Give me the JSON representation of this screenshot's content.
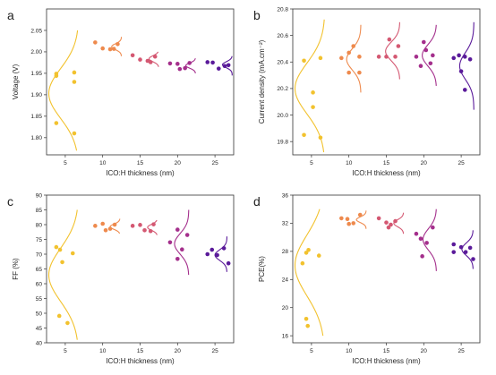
{
  "chart_data": [
    {
      "type": "scatter",
      "letter": "a",
      "xlabel": "ICO:H thickness (nm)",
      "ylabel": "Voltage (V)",
      "categories": [
        5,
        10,
        15,
        20,
        25
      ],
      "xlim": [
        2.5,
        27.5
      ],
      "ylim": [
        1.76,
        2.1
      ],
      "yticks": [
        1.8,
        1.85,
        1.9,
        1.95,
        2.0,
        2.05
      ],
      "ytick_format": 2,
      "series": [
        {
          "category": 5,
          "color": "#f2c22e",
          "points": [
            [
              3.8,
              1.949
            ],
            [
              3.8,
              1.944
            ],
            [
              3.8,
              1.834
            ],
            [
              6.2,
              1.952
            ],
            [
              6.2,
              1.93
            ],
            [
              6.2,
              1.81
            ]
          ]
        },
        {
          "category": 10,
          "color": "#ee8a4d",
          "points": [
            [
              9.0,
              2.022
            ],
            [
              10.0,
              2.008
            ],
            [
              11.0,
              2.006
            ],
            [
              12.0,
              2.018
            ],
            [
              11.5,
              2.007
            ]
          ]
        },
        {
          "category": 15,
          "color": "#d45872",
          "points": [
            [
              14.0,
              1.992
            ],
            [
              15.0,
              1.982
            ],
            [
              16.0,
              1.979
            ],
            [
              17.0,
              1.989
            ],
            [
              16.4,
              1.976
            ]
          ]
        },
        {
          "category": 20,
          "color": "#a42f8c",
          "points": [
            [
              19.0,
              1.973
            ],
            [
              20.0,
              1.972
            ],
            [
              21.0,
              1.962
            ],
            [
              21.6,
              1.974
            ],
            [
              20.3,
              1.96
            ]
          ]
        },
        {
          "category": 25,
          "color": "#5a1a9a",
          "points": [
            [
              24.0,
              1.976
            ],
            [
              24.7,
              1.975
            ],
            [
              25.5,
              1.961
            ],
            [
              26.3,
              1.967
            ],
            [
              26.8,
              1.969
            ]
          ]
        }
      ],
      "distributions": [
        {
          "category": 5,
          "color": "#f2c22e",
          "mean": 1.903,
          "sd": 0.058,
          "amplitude": 4.0,
          "baseline": 6.8,
          "range": [
            1.77,
            2.05
          ]
        },
        {
          "category": 10,
          "color": "#ee8a4d",
          "mean": 2.012,
          "sd": 0.007,
          "amplitude": 1.3,
          "baseline": 12.5,
          "range": [
            1.99,
            2.035
          ]
        },
        {
          "category": 15,
          "color": "#d45872",
          "mean": 1.984,
          "sd": 0.007,
          "amplitude": 1.3,
          "baseline": 17.5,
          "range": [
            1.965,
            2.0
          ]
        },
        {
          "category": 20,
          "color": "#a42f8c",
          "mean": 1.968,
          "sd": 0.006,
          "amplitude": 1.3,
          "baseline": 22.4,
          "range": [
            1.95,
            1.985
          ]
        },
        {
          "category": 25,
          "color": "#5a1a9a",
          "mean": 1.97,
          "sd": 0.007,
          "amplitude": 1.3,
          "baseline": 27.3,
          "range": [
            1.945,
            1.99
          ]
        }
      ]
    },
    {
      "type": "scatter",
      "letter": "b",
      "xlabel": "ICO:H thickness (nm)",
      "ylabel": "Current density (mA.cm⁻²)",
      "categories": [
        5,
        10,
        15,
        20,
        25
      ],
      "xlim": [
        2.5,
        27.5
      ],
      "ylim": [
        19.7,
        20.8
      ],
      "yticks": [
        19.8,
        20.0,
        20.2,
        20.4,
        20.6,
        20.8
      ],
      "ytick_format": 1,
      "series": [
        {
          "category": 5,
          "color": "#f2c22e",
          "points": [
            [
              4.0,
              20.41
            ],
            [
              4.0,
              19.85
            ],
            [
              5.2,
              20.17
            ],
            [
              5.2,
              20.06
            ],
            [
              6.2,
              20.43
            ],
            [
              6.2,
              19.83
            ]
          ]
        },
        {
          "category": 10,
          "color": "#ee8a4d",
          "points": [
            [
              9.0,
              20.43
            ],
            [
              10.0,
              20.47
            ],
            [
              10.6,
              20.52
            ],
            [
              11.4,
              20.44
            ],
            [
              10.0,
              20.32
            ],
            [
              11.4,
              20.32
            ]
          ]
        },
        {
          "category": 15,
          "color": "#d45872",
          "points": [
            [
              14.0,
              20.44
            ],
            [
              15.0,
              20.44
            ],
            [
              15.4,
              20.57
            ],
            [
              16.2,
              20.44
            ],
            [
              16.6,
              20.52
            ]
          ]
        },
        {
          "category": 20,
          "color": "#a42f8c",
          "points": [
            [
              19.0,
              20.44
            ],
            [
              20.0,
              20.55
            ],
            [
              20.3,
              20.49
            ],
            [
              21.2,
              20.45
            ],
            [
              19.6,
              20.37
            ],
            [
              20.9,
              20.39
            ]
          ]
        },
        {
          "category": 25,
          "color": "#5a1a9a",
          "points": [
            [
              24.0,
              20.43
            ],
            [
              24.7,
              20.45
            ],
            [
              25.5,
              20.44
            ],
            [
              26.2,
              20.42
            ],
            [
              25.0,
              20.33
            ],
            [
              25.5,
              20.19
            ]
          ]
        }
      ],
      "distributions": [
        {
          "category": 5,
          "color": "#f2c22e",
          "mean": 20.2,
          "sd": 0.19,
          "amplitude": 4.0,
          "baseline": 6.8,
          "range": [
            19.72,
            20.72
          ]
        },
        {
          "category": 10,
          "color": "#ee8a4d",
          "mean": 20.42,
          "sd": 0.08,
          "amplitude": 1.9,
          "baseline": 11.6,
          "range": [
            20.17,
            20.68
          ]
        },
        {
          "category": 15,
          "color": "#d45872",
          "mean": 20.48,
          "sd": 0.07,
          "amplitude": 1.9,
          "baseline": 16.8,
          "range": [
            20.27,
            20.7
          ]
        },
        {
          "category": 20,
          "color": "#a42f8c",
          "mean": 20.45,
          "sd": 0.08,
          "amplitude": 1.9,
          "baseline": 21.7,
          "range": [
            20.22,
            20.68
          ]
        },
        {
          "category": 25,
          "color": "#5a1a9a",
          "mean": 20.37,
          "sd": 0.1,
          "amplitude": 1.9,
          "baseline": 26.7,
          "range": [
            20.04,
            20.7
          ]
        }
      ]
    },
    {
      "type": "scatter",
      "letter": "c",
      "xlabel": "ICO:H thickness (nm)",
      "ylabel": "FF (%)",
      "categories": [
        5,
        10,
        15,
        20,
        25
      ],
      "xlim": [
        2.5,
        27.5
      ],
      "ylim": [
        40,
        90
      ],
      "yticks": [
        40,
        45,
        50,
        55,
        60,
        65,
        70,
        75,
        80,
        85,
        90
      ],
      "ytick_format": 0,
      "series": [
        {
          "category": 5,
          "color": "#f2c22e",
          "points": [
            [
              3.8,
              72.4
            ],
            [
              4.3,
              71.5
            ],
            [
              4.6,
              67.3
            ],
            [
              6.0,
              70.3
            ],
            [
              4.2,
              49.1
            ],
            [
              5.3,
              46.7
            ]
          ]
        },
        {
          "category": 10,
          "color": "#ee8a4d",
          "points": [
            [
              9.0,
              79.6
            ],
            [
              10.0,
              80.3
            ],
            [
              10.4,
              78.1
            ],
            [
              11.0,
              78.6
            ],
            [
              11.6,
              80.0
            ]
          ]
        },
        {
          "category": 15,
          "color": "#d45872",
          "points": [
            [
              14.0,
              79.6
            ],
            [
              15.0,
              79.9
            ],
            [
              15.6,
              78.1
            ],
            [
              16.4,
              77.8
            ],
            [
              16.8,
              80.1
            ]
          ]
        },
        {
          "category": 20,
          "color": "#a42f8c",
          "points": [
            [
              19.0,
              74.0
            ],
            [
              20.0,
              78.3
            ],
            [
              20.6,
              71.6
            ],
            [
              21.3,
              76.5
            ],
            [
              20.0,
              68.4
            ]
          ]
        },
        {
          "category": 25,
          "color": "#5a1a9a",
          "points": [
            [
              24.0,
              70.0
            ],
            [
              24.6,
              71.5
            ],
            [
              25.3,
              69.7
            ],
            [
              26.2,
              72.0
            ],
            [
              26.8,
              66.9
            ]
          ]
        }
      ],
      "distributions": [
        {
          "category": 5,
          "color": "#f2c22e",
          "mean": 63.0,
          "sd": 9.0,
          "amplitude": 4.0,
          "baseline": 6.8,
          "range": [
            41,
            85
          ]
        },
        {
          "category": 10,
          "color": "#ee8a4d",
          "mean": 79.3,
          "sd": 0.9,
          "amplitude": 1.3,
          "baseline": 12.3,
          "range": [
            77,
            82
          ]
        },
        {
          "category": 15,
          "color": "#d45872",
          "mean": 79.1,
          "sd": 1.0,
          "amplitude": 1.3,
          "baseline": 17.3,
          "range": [
            76.5,
            81.5
          ]
        },
        {
          "category": 20,
          "color": "#a42f8c",
          "mean": 73.5,
          "sd": 3.5,
          "amplitude": 1.9,
          "baseline": 21.5,
          "range": [
            63,
            85
          ]
        },
        {
          "category": 25,
          "color": "#5a1a9a",
          "mean": 69.7,
          "sd": 1.8,
          "amplitude": 1.6,
          "baseline": 26.6,
          "range": [
            64,
            76
          ]
        }
      ]
    },
    {
      "type": "scatter",
      "letter": "d",
      "xlabel": "ICO:H thickness (nm)",
      "ylabel": "PCE(%)",
      "categories": [
        5,
        10,
        15,
        20,
        25
      ],
      "xlim": [
        2.5,
        27.5
      ],
      "ylim": [
        15,
        36
      ],
      "yticks": [
        16,
        20,
        24,
        28,
        32,
        36
      ],
      "ytick_format": 0,
      "series": [
        {
          "category": 5,
          "color": "#f2c22e",
          "points": [
            [
              3.8,
              26.3
            ],
            [
              4.3,
              27.8
            ],
            [
              4.6,
              28.2
            ],
            [
              6.0,
              27.4
            ],
            [
              4.3,
              18.4
            ],
            [
              4.5,
              17.4
            ]
          ]
        },
        {
          "category": 10,
          "color": "#ee8a4d",
          "points": [
            [
              9.0,
              32.7
            ],
            [
              9.8,
              32.6
            ],
            [
              10.0,
              31.9
            ],
            [
              10.6,
              32.0
            ],
            [
              11.5,
              33.2
            ]
          ]
        },
        {
          "category": 15,
          "color": "#d45872",
          "points": [
            [
              14.0,
              32.7
            ],
            [
              15.0,
              32.1
            ],
            [
              15.6,
              31.8
            ],
            [
              16.2,
              32.3
            ],
            [
              15.3,
              31.4
            ]
          ]
        },
        {
          "category": 20,
          "color": "#a42f8c",
          "points": [
            [
              19.0,
              30.5
            ],
            [
              19.6,
              29.8
            ],
            [
              20.4,
              29.2
            ],
            [
              21.2,
              31.4
            ],
            [
              19.8,
              27.3
            ]
          ]
        },
        {
          "category": 25,
          "color": "#5a1a9a",
          "points": [
            [
              24.0,
              29.0
            ],
            [
              24.0,
              27.9
            ],
            [
              25.0,
              28.6
            ],
            [
              25.6,
              27.9
            ],
            [
              26.2,
              28.5
            ],
            [
              26.6,
              26.9
            ]
          ]
        }
      ],
      "distributions": [
        {
          "category": 5,
          "color": "#f2c22e",
          "mean": 26.0,
          "sd": 4.3,
          "amplitude": 4.0,
          "baseline": 6.8,
          "range": [
            16,
            34
          ]
        },
        {
          "category": 10,
          "color": "#ee8a4d",
          "mean": 32.5,
          "sd": 0.4,
          "amplitude": 1.3,
          "baseline": 12.3,
          "range": [
            31.2,
            33.8
          ]
        },
        {
          "category": 15,
          "color": "#d45872",
          "mean": 32.0,
          "sd": 0.5,
          "amplitude": 1.3,
          "baseline": 17.3,
          "range": [
            30.5,
            33.5
          ]
        },
        {
          "category": 20,
          "color": "#a42f8c",
          "mean": 29.7,
          "sd": 1.5,
          "amplitude": 1.8,
          "baseline": 21.7,
          "range": [
            25.2,
            34
          ]
        },
        {
          "category": 25,
          "color": "#5a1a9a",
          "mean": 28.3,
          "sd": 0.9,
          "amplitude": 1.5,
          "baseline": 26.6,
          "range": [
            25.5,
            31
          ]
        }
      ]
    }
  ]
}
